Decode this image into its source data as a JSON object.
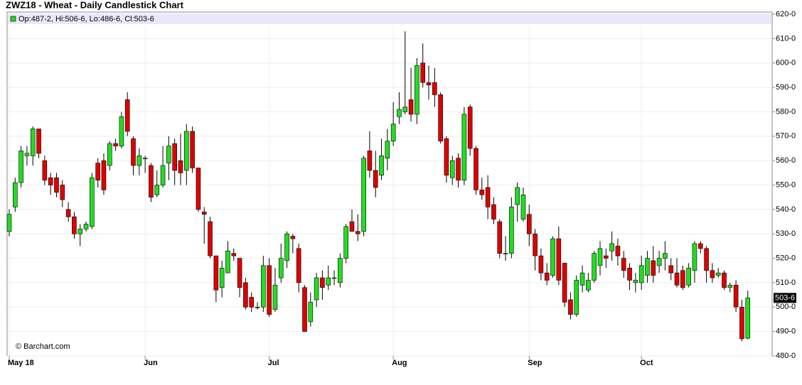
{
  "chart_data": {
    "type": "candlestick",
    "title": "ZWZ18 - Wheat - Daily Candlestick Chart",
    "info": "Op:487-2, Hi:506-6, Lo:486-6, Cl:503-6",
    "credit": "© Barchart.com",
    "up_color": "#22dd22",
    "down_color": "#dd0000",
    "last": {
      "value": 503.75,
      "label": "503-6"
    },
    "ylim": [
      480,
      620
    ],
    "yticks": [
      {
        "value": 480,
        "label": "480-0"
      },
      {
        "value": 490,
        "label": "490-0"
      },
      {
        "value": 500,
        "label": "500-0"
      },
      {
        "value": 510,
        "label": "510-0"
      },
      {
        "value": 520,
        "label": "520-0"
      },
      {
        "value": 530,
        "label": "530-0"
      },
      {
        "value": 540,
        "label": "540-0"
      },
      {
        "value": 550,
        "label": "550-0"
      },
      {
        "value": 560,
        "label": "560-0"
      },
      {
        "value": 570,
        "label": "570-0"
      },
      {
        "value": 580,
        "label": "580-0"
      },
      {
        "value": 590,
        "label": "590-0"
      },
      {
        "value": 600,
        "label": "600-0"
      },
      {
        "value": 610,
        "label": "610-0"
      },
      {
        "value": 620,
        "label": "620-0"
      }
    ],
    "categories": [
      "May 18",
      null,
      null,
      null,
      null,
      null,
      null,
      null,
      null,
      null,
      null,
      null,
      null,
      null,
      null,
      null,
      null,
      null,
      null,
      null,
      null,
      null,
      null,
      "Jun",
      null,
      null,
      null,
      null,
      null,
      null,
      null,
      null,
      null,
      null,
      null,
      null,
      null,
      null,
      null,
      null,
      null,
      null,
      null,
      null,
      "Jul",
      null,
      null,
      null,
      null,
      null,
      null,
      null,
      null,
      null,
      null,
      null,
      null,
      null,
      null,
      null,
      null,
      null,
      null,
      null,
      null,
      "Aug",
      null,
      null,
      null,
      null,
      null,
      null,
      null,
      null,
      null,
      null,
      null,
      null,
      null,
      null,
      null,
      null,
      null,
      null,
      null,
      null,
      null,
      null,
      "Sep",
      null,
      null,
      null,
      null,
      null,
      null,
      null,
      null,
      null,
      null,
      null,
      null,
      null,
      null,
      null,
      null,
      null,
      null,
      "Oct",
      null,
      null,
      null,
      null,
      null,
      null,
      null,
      null,
      null,
      null,
      null,
      null,
      null,
      null,
      null,
      null,
      null,
      null
    ],
    "open": [
      531,
      541,
      551,
      562,
      562,
      573,
      560,
      553,
      553,
      550,
      540,
      537,
      530,
      532,
      533,
      559,
      560,
      558,
      567,
      566,
      585,
      569,
      558,
      561,
      558,
      546,
      550,
      559,
      567,
      560,
      556,
      572,
      557,
      539,
      535,
      521,
      508,
      514,
      522,
      520,
      510,
      504,
      500,
      500,
      517,
      499,
      512,
      519,
      529,
      524,
      508,
      494,
      503,
      512,
      509,
      512,
      510,
      520,
      535,
      531,
      531,
      564,
      556,
      554,
      561,
      568,
      578,
      580,
      585,
      579,
      600,
      592,
      592,
      587,
      569,
      553,
      561,
      552,
      582,
      565,
      548,
      549,
      542,
      535,
      522,
      522,
      542,
      536,
      538,
      530,
      521,
      514,
      513,
      528,
      518,
      503,
      497,
      509,
      507,
      511,
      517,
      521,
      523,
      525,
      520,
      516,
      510,
      510,
      513,
      519,
      517,
      520,
      517,
      514,
      515,
      509,
      515,
      526,
      524,
      515,
      513,
      514,
      508,
      509,
      500,
      487.25
    ],
    "high": [
      540,
      553,
      566,
      566,
      574,
      573,
      562,
      555,
      555,
      552,
      543,
      539,
      534,
      535,
      555,
      561,
      563,
      568,
      569,
      580,
      588,
      570,
      565,
      562,
      559,
      556,
      566,
      570,
      569,
      571,
      575,
      574,
      557,
      541,
      537,
      521,
      519,
      527,
      524,
      520,
      512,
      506,
      502,
      521,
      520,
      516,
      526,
      531,
      530,
      526,
      509,
      506,
      514,
      515,
      517,
      515,
      522,
      534,
      540,
      538,
      562,
      572,
      564,
      569,
      573,
      584,
      588,
      613,
      598,
      602,
      608,
      599,
      598,
      588,
      570,
      562,
      563,
      582,
      583,
      566,
      553,
      554,
      545,
      536,
      529,
      545,
      551,
      549,
      542,
      532,
      524,
      518,
      529,
      533,
      518,
      506,
      513,
      517,
      514,
      523,
      527,
      524,
      531,
      528,
      523,
      518,
      514,
      521,
      523,
      525,
      523,
      527,
      520,
      520,
      517,
      518,
      527,
      527,
      525,
      518,
      516,
      515,
      510,
      511,
      503,
      506.75
    ],
    "low": [
      529,
      539,
      549,
      558,
      558,
      561,
      550,
      546,
      545,
      541,
      535,
      528,
      525,
      531,
      532,
      549,
      546,
      556,
      564,
      565,
      570,
      554,
      554,
      555,
      543,
      545,
      549,
      552,
      550,
      550,
      550,
      555,
      539,
      526,
      520,
      502,
      504,
      514,
      519,
      504,
      499,
      498,
      499,
      498,
      496,
      498,
      510,
      516,
      522,
      506,
      490,
      492,
      500,
      503,
      507,
      509,
      508,
      518,
      531,
      527,
      529,
      553,
      545,
      552,
      556,
      566,
      575,
      579,
      576,
      575,
      590,
      585,
      582,
      567,
      551,
      550,
      549,
      550,
      562,
      546,
      544,
      536,
      534,
      520,
      519,
      520,
      535,
      535,
      525,
      515,
      511,
      509,
      512,
      509,
      500,
      495,
      496,
      506,
      506,
      510,
      513,
      516,
      519,
      517,
      512,
      507,
      506,
      507,
      510,
      510,
      514,
      515,
      511,
      508,
      507,
      508,
      510,
      522,
      510,
      510,
      512,
      507,
      506,
      498,
      486,
      486.75
    ],
    "close": [
      538,
      551,
      564,
      563,
      573,
      563,
      552,
      550,
      547,
      544,
      537,
      530,
      532,
      534,
      553,
      552,
      548,
      567,
      566,
      578,
      572,
      558,
      562,
      561,
      545,
      550,
      558,
      566,
      556,
      555,
      572,
      557,
      540,
      538,
      521,
      507,
      516,
      523,
      521,
      508,
      500,
      500,
      500,
      517,
      497,
      509,
      520,
      530,
      528,
      510,
      490,
      502,
      512,
      508,
      512,
      512,
      520,
      533,
      531,
      530,
      561,
      556,
      549,
      562,
      568,
      575,
      581,
      582,
      579,
      599,
      592,
      591,
      587,
      568,
      554,
      560,
      552,
      579,
      565,
      548,
      546,
      541,
      536,
      522,
      522,
      541,
      549,
      546,
      530,
      521,
      514,
      511,
      528,
      511,
      502,
      497,
      511,
      514,
      511,
      522,
      524,
      520,
      526,
      521,
      515,
      511,
      511,
      517,
      520,
      513,
      520,
      522,
      514,
      509,
      508,
      516,
      526,
      524,
      515,
      512,
      514,
      508,
      509,
      500,
      487,
      503.75
    ]
  }
}
